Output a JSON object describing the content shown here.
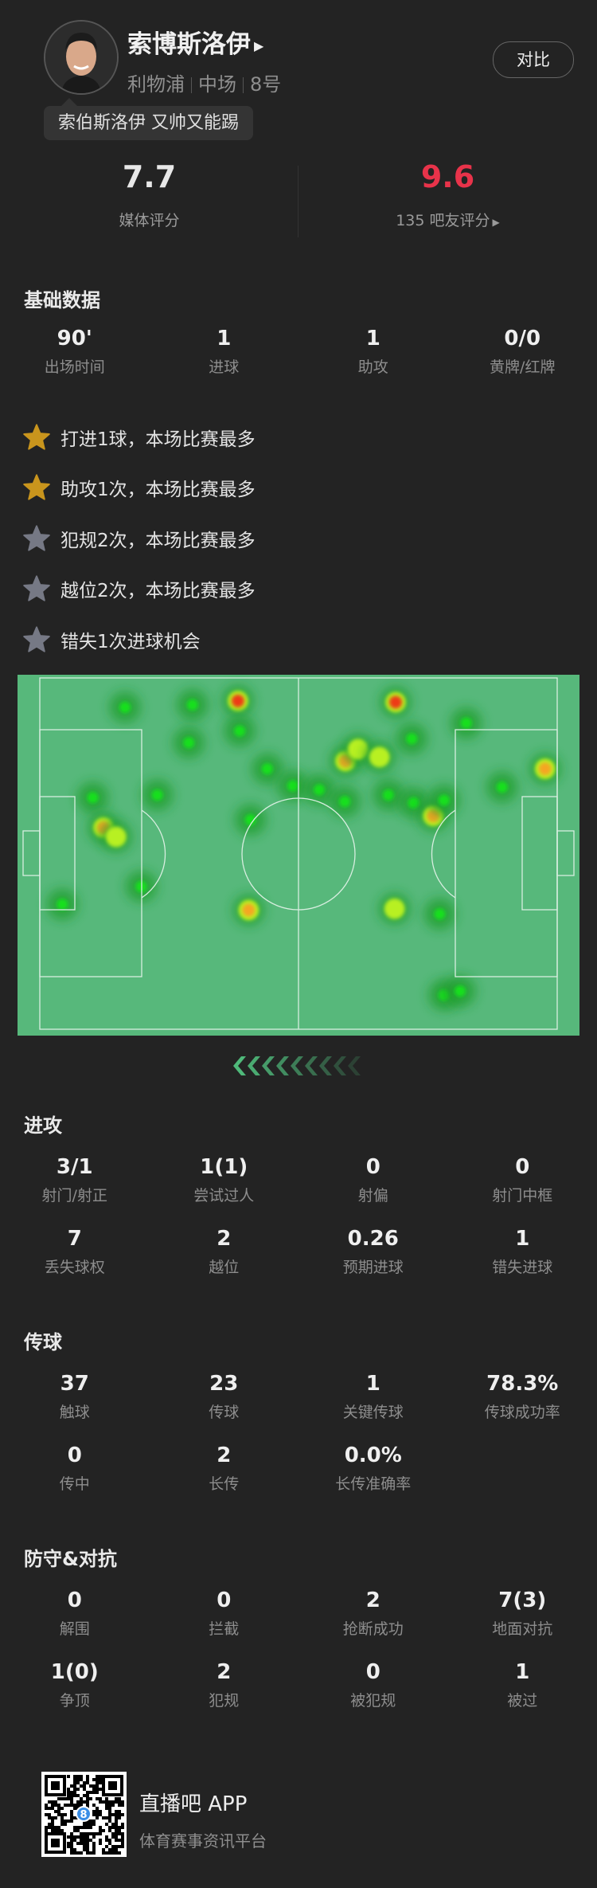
{
  "player": {
    "name": "索博斯洛伊",
    "team": "利物浦",
    "position": "中场",
    "number": "8号",
    "compare_label": "对比",
    "tagline": "索伯斯洛伊 又帅又能踢"
  },
  "ratings": {
    "media_value": "7.7",
    "media_label": "媒体评分",
    "fan_value": "9.6",
    "fan_label": "135 吧友评分",
    "fan_color": "#e8334a"
  },
  "basic": {
    "title": "基础数据",
    "stats": [
      {
        "value": "90'",
        "label": "出场时间"
      },
      {
        "value": "1",
        "label": "进球"
      },
      {
        "value": "1",
        "label": "助攻"
      },
      {
        "value": "0/0",
        "label": "黄牌/红牌"
      }
    ]
  },
  "highlights": [
    {
      "text": "打进1球，本场比赛最多",
      "star": "gold"
    },
    {
      "text": "助攻1次，本场比赛最多",
      "star": "gold"
    },
    {
      "text": "犯规2次，本场比赛最多",
      "star": "gray"
    },
    {
      "text": "越位2次，本场比赛最多",
      "star": "gray"
    },
    {
      "text": "错失1次进球机会",
      "star": "gray"
    }
  ],
  "colors": {
    "gold_star": "#c9951d",
    "gray_star": "#767985",
    "pitch": "#57b87b",
    "background": "#232323"
  },
  "attack": {
    "title": "进攻",
    "stats": [
      {
        "value": "3/1",
        "label": "射门/射正"
      },
      {
        "value": "1(1)",
        "label": "尝试过人"
      },
      {
        "value": "0",
        "label": "射偏"
      },
      {
        "value": "0",
        "label": "射门中框"
      },
      {
        "value": "7",
        "label": "丢失球权"
      },
      {
        "value": "2",
        "label": "越位"
      },
      {
        "value": "0.26",
        "label": "预期进球"
      },
      {
        "value": "1",
        "label": "错失进球"
      }
    ]
  },
  "passing": {
    "title": "传球",
    "stats": [
      {
        "value": "37",
        "label": "触球"
      },
      {
        "value": "23",
        "label": "传球"
      },
      {
        "value": "1",
        "label": "关键传球"
      },
      {
        "value": "78.3%",
        "label": "传球成功率"
      },
      {
        "value": "0",
        "label": "传中"
      },
      {
        "value": "2",
        "label": "长传"
      },
      {
        "value": "0.0%",
        "label": "长传准确率"
      }
    ]
  },
  "defense": {
    "title": "防守&对抗",
    "stats": [
      {
        "value": "0",
        "label": "解围"
      },
      {
        "value": "0",
        "label": "拦截"
      },
      {
        "value": "2",
        "label": "抢断成功"
      },
      {
        "value": "7(3)",
        "label": "地面对抗"
      },
      {
        "value": "1(0)",
        "label": "争顶"
      },
      {
        "value": "2",
        "label": "犯规"
      },
      {
        "value": "0",
        "label": "被犯规"
      },
      {
        "value": "1",
        "label": "被过"
      }
    ]
  },
  "footer": {
    "app_name": "直播吧 APP",
    "app_subtitle": "体育赛事资讯平台"
  }
}
